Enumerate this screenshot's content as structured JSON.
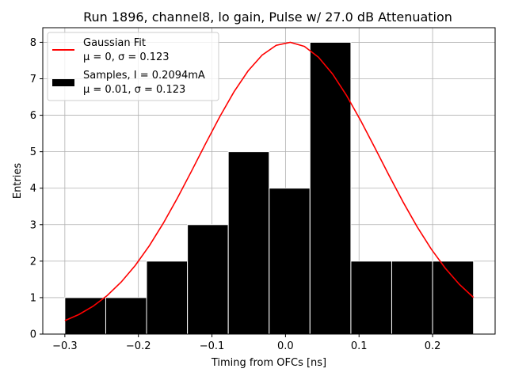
{
  "chart_data": {
    "type": "bar",
    "title": "Run 1896, channel8, lo gain, Pulse w/ 27.0 dB Attenuation",
    "xlabel": "Timing from OFCs [ns]",
    "ylabel": "Entries",
    "xlim": [
      -0.33,
      0.285
    ],
    "ylim": [
      0,
      8.4
    ],
    "grid": true,
    "xticks": [
      -0.3,
      -0.2,
      -0.1,
      0.0,
      0.1,
      0.2
    ],
    "xtick_labels": [
      "−0.3",
      "−0.2",
      "−0.1",
      "0.0",
      "0.1",
      "0.2"
    ],
    "yticks": [
      0,
      1,
      2,
      3,
      4,
      5,
      6,
      7,
      8
    ],
    "ytick_labels": [
      "0",
      "1",
      "2",
      "3",
      "4",
      "5",
      "6",
      "7",
      "8"
    ],
    "histogram": {
      "name": "Samples, I = 0.2094mA",
      "stats": "μ = 0.01, σ = 0.123",
      "color": "#000000",
      "edgecolor": "#ffffff",
      "bin_edges": [
        -0.3,
        -0.2444,
        -0.1889,
        -0.1333,
        -0.0778,
        -0.0222,
        0.0333,
        0.0889,
        0.1444,
        0.2,
        0.2556
      ],
      "counts": [
        1,
        1,
        2,
        3,
        5,
        4,
        8,
        2,
        2,
        2
      ]
    },
    "fit": {
      "name": "Gaussian Fit",
      "stats": "μ = 0, σ = 0.123",
      "color": "#ff0000",
      "amplitude": 8.0,
      "mean": 0.005,
      "sigma": 0.123,
      "x_range": [
        -0.3,
        0.2556
      ],
      "n_points": 30
    },
    "legend": {
      "location": "upper-left",
      "entries": [
        {
          "line1": "Gaussian Fit",
          "line2": "μ = 0, σ = 0.123",
          "marker": "line",
          "color": "#ff0000"
        },
        {
          "line1": "Samples, I = 0.2094mA",
          "line2": "μ = 0.01, σ = 0.123",
          "marker": "patch",
          "color": "#000000"
        }
      ]
    }
  }
}
